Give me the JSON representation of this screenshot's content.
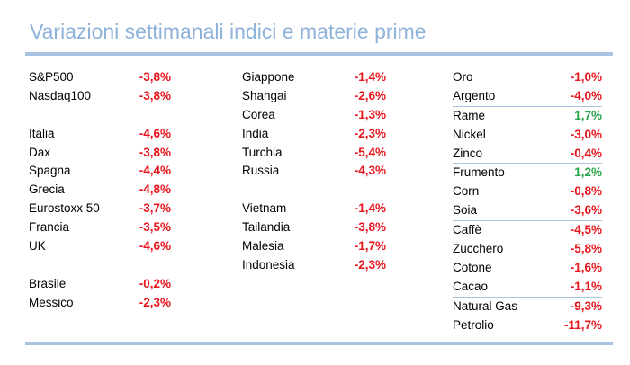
{
  "title": "Variazioni settimanali indici e materie prime",
  "colors": {
    "negative": "#e8141b",
    "positive": "#28a44a",
    "accent": "#a8c4e2"
  },
  "columns": [
    {
      "rows": [
        {
          "label": "S&P500",
          "value": "-3,8%",
          "sign": "neg"
        },
        {
          "label": "Nasdaq100",
          "value": "-3,8%",
          "sign": "neg"
        },
        {
          "label": "",
          "value": "",
          "sign": ""
        },
        {
          "label": "Italia",
          "value": "-4,6%",
          "sign": "neg"
        },
        {
          "label": "Dax",
          "value": "-3,8%",
          "sign": "neg"
        },
        {
          "label": "Spagna",
          "value": "-4,4%",
          "sign": "neg"
        },
        {
          "label": "Grecia",
          "value": "-4,8%",
          "sign": "neg"
        },
        {
          "label": "Eurostoxx 50",
          "value": "-3,7%",
          "sign": "neg"
        },
        {
          "label": "Francia",
          "value": "-3,5%",
          "sign": "neg"
        },
        {
          "label": "UK",
          "value": "-4,6%",
          "sign": "neg"
        },
        {
          "label": "",
          "value": "",
          "sign": ""
        },
        {
          "label": "Brasile",
          "value": "-0,2%",
          "sign": "neg"
        },
        {
          "label": "Messico",
          "value": "-2,3%",
          "sign": "neg"
        }
      ]
    },
    {
      "rows": [
        {
          "label": "Giappone",
          "value": "-1,4%",
          "sign": "neg"
        },
        {
          "label": "Shangai",
          "value": "-2,6%",
          "sign": "neg"
        },
        {
          "label": "Corea",
          "value": "-1,3%",
          "sign": "neg"
        },
        {
          "label": "India",
          "value": "-2,3%",
          "sign": "neg"
        },
        {
          "label": "Turchia",
          "value": "-5,4%",
          "sign": "neg"
        },
        {
          "label": "Russia",
          "value": "-4,3%",
          "sign": "neg"
        },
        {
          "label": "",
          "value": "",
          "sign": ""
        },
        {
          "label": "Vietnam",
          "value": "-1,4%",
          "sign": "neg"
        },
        {
          "label": "Tailandia",
          "value": "-3,8%",
          "sign": "neg"
        },
        {
          "label": "Malesia",
          "value": "-1,7%",
          "sign": "neg"
        },
        {
          "label": "Indonesia",
          "value": "-2,3%",
          "sign": "neg"
        }
      ]
    },
    {
      "rows": [
        {
          "label": "Oro",
          "value": "-1,0%",
          "sign": "neg"
        },
        {
          "label": "Argento",
          "value": "-4,0%",
          "sign": "neg"
        },
        {
          "label": "Rame",
          "value": "1,7%",
          "sign": "pos",
          "sep": true
        },
        {
          "label": "Nickel",
          "value": "-3,0%",
          "sign": "neg"
        },
        {
          "label": "Zinco",
          "value": "-0,4%",
          "sign": "neg"
        },
        {
          "label": "Frumento",
          "value": "1,2%",
          "sign": "pos",
          "sep": true
        },
        {
          "label": "Corn",
          "value": "-0,8%",
          "sign": "neg"
        },
        {
          "label": "Soia",
          "value": "-3,6%",
          "sign": "neg"
        },
        {
          "label": "Caffè",
          "value": "-4,5%",
          "sign": "neg",
          "sep": true
        },
        {
          "label": "Zucchero",
          "value": "-5,8%",
          "sign": "neg"
        },
        {
          "label": "Cotone",
          "value": "-1,6%",
          "sign": "neg"
        },
        {
          "label": "Cacao",
          "value": "-1,1%",
          "sign": "neg"
        },
        {
          "label": "Natural Gas",
          "value": "-9,3%",
          "sign": "neg",
          "sep": true
        },
        {
          "label": "Petrolio",
          "value": "-11,7%",
          "sign": "neg"
        }
      ]
    }
  ]
}
